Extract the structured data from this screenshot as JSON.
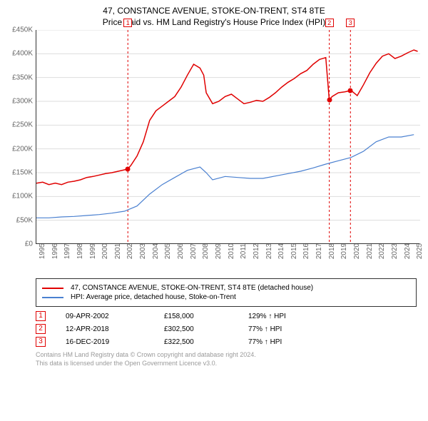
{
  "titles": {
    "line1": "47, CONSTANCE AVENUE, STOKE-ON-TRENT, ST4 8TE",
    "line2": "Price paid vs. HM Land Registry's House Price Index (HPI)"
  },
  "chart": {
    "type": "line",
    "background_color": "#ffffff",
    "grid_color": "#dddddd",
    "axis_color": "#333333",
    "label_color": "#666666",
    "label_fontsize": 10,
    "xlim": [
      1995,
      2025.5
    ],
    "ylim": [
      0,
      450000
    ],
    "ytick_step": 50000,
    "yticks": [
      "£0",
      "£50K",
      "£100K",
      "£150K",
      "£200K",
      "£250K",
      "£300K",
      "£350K",
      "£400K",
      "£450K"
    ],
    "xticks": [
      "1995",
      "1996",
      "1997",
      "1998",
      "1999",
      "2000",
      "2001",
      "2002",
      "2003",
      "2004",
      "2005",
      "2006",
      "2007",
      "2008",
      "2009",
      "2010",
      "2011",
      "2012",
      "2013",
      "2014",
      "2015",
      "2016",
      "2017",
      "2018",
      "2019",
      "2020",
      "2021",
      "2022",
      "2023",
      "2024",
      "2025"
    ],
    "series": [
      {
        "id": "property_price",
        "label": "47, CONSTANCE AVENUE, STOKE-ON-TRENT, ST4 8TE (detached house)",
        "color": "#e00000",
        "line_width": 1.5,
        "data": [
          [
            1995,
            128000
          ],
          [
            1995.5,
            130000
          ],
          [
            1996,
            125000
          ],
          [
            1996.5,
            128000
          ],
          [
            1997,
            125000
          ],
          [
            1997.5,
            130000
          ],
          [
            1998,
            132000
          ],
          [
            1998.5,
            135000
          ],
          [
            1999,
            140000
          ],
          [
            1999.5,
            142000
          ],
          [
            2000,
            145000
          ],
          [
            2000.5,
            148000
          ],
          [
            2001,
            150000
          ],
          [
            2001.5,
            153000
          ],
          [
            2002,
            156000
          ],
          [
            2002.27,
            158000
          ],
          [
            2002.5,
            165000
          ],
          [
            2003,
            185000
          ],
          [
            2003.5,
            215000
          ],
          [
            2004,
            260000
          ],
          [
            2004.5,
            280000
          ],
          [
            2005,
            290000
          ],
          [
            2005.5,
            300000
          ],
          [
            2006,
            310000
          ],
          [
            2006.5,
            330000
          ],
          [
            2007,
            355000
          ],
          [
            2007.5,
            378000
          ],
          [
            2008,
            370000
          ],
          [
            2008.3,
            355000
          ],
          [
            2008.5,
            318000
          ],
          [
            2009,
            295000
          ],
          [
            2009.5,
            300000
          ],
          [
            2010,
            310000
          ],
          [
            2010.5,
            315000
          ],
          [
            2011,
            305000
          ],
          [
            2011.5,
            295000
          ],
          [
            2012,
            298000
          ],
          [
            2012.5,
            302000
          ],
          [
            2013,
            300000
          ],
          [
            2013.5,
            308000
          ],
          [
            2014,
            318000
          ],
          [
            2014.5,
            330000
          ],
          [
            2015,
            340000
          ],
          [
            2015.5,
            348000
          ],
          [
            2016,
            358000
          ],
          [
            2016.5,
            365000
          ],
          [
            2017,
            378000
          ],
          [
            2017.5,
            388000
          ],
          [
            2018,
            392000
          ],
          [
            2018.28,
            302500
          ],
          [
            2018.5,
            310000
          ],
          [
            2019,
            318000
          ],
          [
            2019.5,
            320000
          ],
          [
            2019.96,
            322500
          ],
          [
            2020,
            323000
          ],
          [
            2020.5,
            312000
          ],
          [
            2021,
            335000
          ],
          [
            2021.5,
            360000
          ],
          [
            2022,
            380000
          ],
          [
            2022.5,
            395000
          ],
          [
            2023,
            400000
          ],
          [
            2023.5,
            390000
          ],
          [
            2024,
            395000
          ],
          [
            2024.5,
            402000
          ],
          [
            2025,
            408000
          ],
          [
            2025.3,
            405000
          ]
        ]
      },
      {
        "id": "hpi",
        "label": "HPI: Average price, detached house, Stoke-on-Trent",
        "color": "#4a80d0",
        "line_width": 1.2,
        "data": [
          [
            1995,
            55000
          ],
          [
            1996,
            55000
          ],
          [
            1997,
            57000
          ],
          [
            1998,
            58000
          ],
          [
            1999,
            60000
          ],
          [
            2000,
            62000
          ],
          [
            2001,
            65000
          ],
          [
            2002,
            69000
          ],
          [
            2003,
            80000
          ],
          [
            2004,
            105000
          ],
          [
            2005,
            125000
          ],
          [
            2006,
            140000
          ],
          [
            2007,
            155000
          ],
          [
            2008,
            162000
          ],
          [
            2008.5,
            150000
          ],
          [
            2009,
            135000
          ],
          [
            2010,
            142000
          ],
          [
            2011,
            140000
          ],
          [
            2012,
            138000
          ],
          [
            2013,
            138000
          ],
          [
            2014,
            143000
          ],
          [
            2015,
            148000
          ],
          [
            2016,
            153000
          ],
          [
            2017,
            160000
          ],
          [
            2018,
            168000
          ],
          [
            2019,
            175000
          ],
          [
            2020,
            182000
          ],
          [
            2021,
            195000
          ],
          [
            2022,
            215000
          ],
          [
            2023,
            225000
          ],
          [
            2024,
            225000
          ],
          [
            2025,
            230000
          ]
        ]
      }
    ],
    "sale_markers": [
      {
        "n": "1",
        "x": 2002.27,
        "y": 158000,
        "dot_color": "#e00000",
        "line_color": "#e00000"
      },
      {
        "n": "2",
        "x": 2018.28,
        "y": 302500,
        "dot_color": "#e00000",
        "line_color": "#e00000"
      },
      {
        "n": "3",
        "x": 2019.96,
        "y": 322500,
        "dot_color": "#e00000",
        "line_color": "#e00000"
      }
    ]
  },
  "legend": {
    "items": [
      {
        "color": "#e00000",
        "label": "47, CONSTANCE AVENUE, STOKE-ON-TRENT, ST4 8TE (detached house)"
      },
      {
        "color": "#4a80d0",
        "label": "HPI: Average price, detached house, Stoke-on-Trent"
      }
    ]
  },
  "sales": [
    {
      "n": "1",
      "date": "09-APR-2002",
      "price": "£158,000",
      "delta": "129% ↑ HPI"
    },
    {
      "n": "2",
      "date": "12-APR-2018",
      "price": "£302,500",
      "delta": "77% ↑ HPI"
    },
    {
      "n": "3",
      "date": "16-DEC-2019",
      "price": "£322,500",
      "delta": "77% ↑ HPI"
    }
  ],
  "footer": {
    "line1": "Contains HM Land Registry data © Crown copyright and database right 2024.",
    "line2": "This data is licensed under the Open Government Licence v3.0."
  },
  "colors": {
    "marker_border": "#e00000",
    "footer_text": "#9a9a9a"
  }
}
